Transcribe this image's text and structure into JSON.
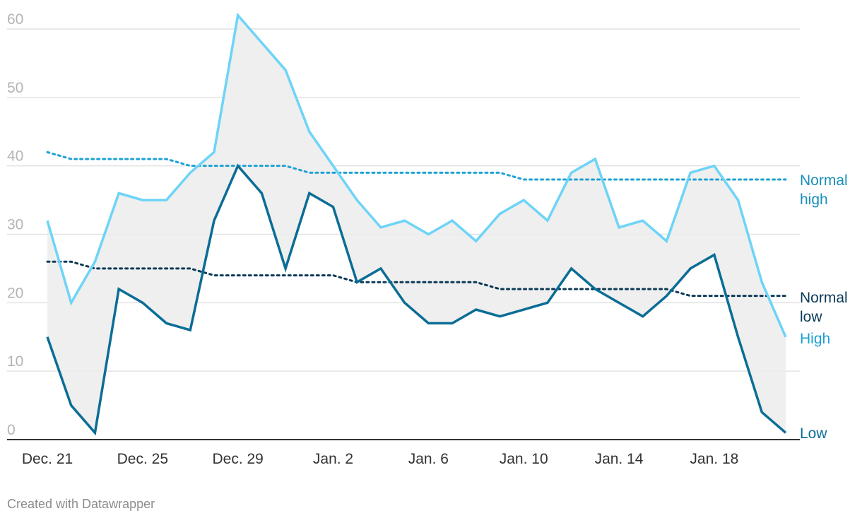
{
  "chart_data": {
    "type": "line",
    "x": [
      "Dec. 21",
      "Dec. 22",
      "Dec. 23",
      "Dec. 24",
      "Dec. 25",
      "Dec. 26",
      "Dec. 27",
      "Dec. 28",
      "Dec. 29",
      "Dec. 30",
      "Dec. 31",
      "Jan. 1",
      "Jan. 2",
      "Jan. 3",
      "Jan. 4",
      "Jan. 5",
      "Jan. 6",
      "Jan. 7",
      "Jan. 8",
      "Jan. 9",
      "Jan. 10",
      "Jan. 11",
      "Jan. 12",
      "Jan. 13",
      "Jan. 14",
      "Jan. 15",
      "Jan. 16",
      "Jan. 17",
      "Jan. 18",
      "Jan. 19",
      "Jan. 20",
      "Jan. 21"
    ],
    "x_tick_labels": [
      "Dec. 21",
      "Dec. 25",
      "Dec. 29",
      "Jan. 2",
      "Jan. 6",
      "Jan. 10",
      "Jan. 14",
      "Jan. 18"
    ],
    "y_ticks": [
      0,
      10,
      20,
      30,
      40,
      50,
      60
    ],
    "ylim": [
      0,
      62
    ],
    "grid": true,
    "shaded_band_between": [
      "High",
      "Low"
    ],
    "series": [
      {
        "name": "High",
        "style": "solid",
        "color": "#6dd4f7",
        "values": [
          32,
          20,
          26,
          36,
          35,
          35,
          39,
          42,
          62,
          58,
          54,
          45,
          40,
          35,
          31,
          32,
          30,
          32,
          29,
          33,
          35,
          32,
          39,
          41,
          31,
          32,
          29,
          39,
          40,
          35,
          23,
          15
        ]
      },
      {
        "name": "Low",
        "style": "solid",
        "color": "#0b6d96",
        "values": [
          15,
          5,
          1,
          22,
          20,
          17,
          16,
          32,
          40,
          36,
          25,
          36,
          34,
          23,
          25,
          20,
          17,
          17,
          19,
          18,
          19,
          20,
          25,
          22,
          20,
          18,
          21,
          25,
          27,
          15,
          4,
          1
        ]
      },
      {
        "name": "Normal high",
        "style": "dotted",
        "color": "#1ea2d4",
        "values": [
          42,
          41,
          41,
          41,
          41,
          41,
          40,
          40,
          40,
          40,
          40,
          39,
          39,
          39,
          39,
          39,
          39,
          39,
          39,
          39,
          38,
          38,
          38,
          38,
          38,
          38,
          38,
          38,
          38,
          38,
          38,
          38
        ]
      },
      {
        "name": "Normal low",
        "style": "dotted",
        "color": "#0a3a57",
        "values": [
          26,
          26,
          25,
          25,
          25,
          25,
          25,
          24,
          24,
          24,
          24,
          24,
          24,
          23,
          23,
          23,
          23,
          23,
          23,
          22,
          22,
          22,
          22,
          22,
          22,
          22,
          22,
          21,
          21,
          21,
          21,
          21
        ]
      }
    ],
    "series_labels": {
      "normal_high_line1": "Normal",
      "normal_high_line2": "high",
      "normal_low_line1": "Normal",
      "normal_low_line2": "low",
      "high": "High",
      "low": "Low"
    }
  },
  "footer": {
    "credit": "Created with Datawrapper"
  }
}
